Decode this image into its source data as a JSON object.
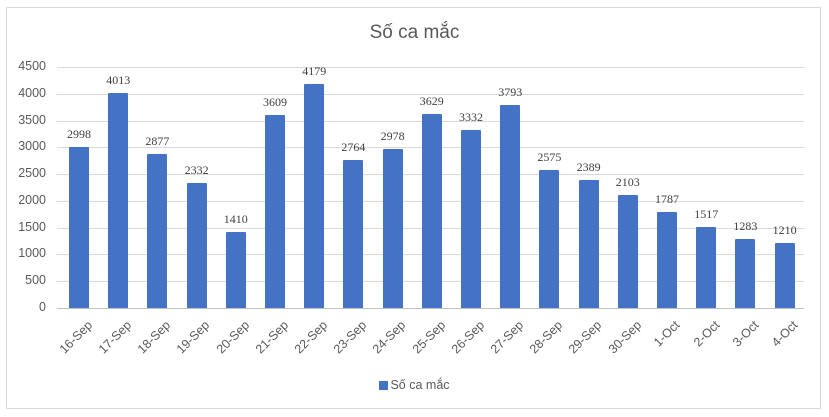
{
  "chart_data": {
    "type": "bar",
    "title": "Số ca mắc",
    "xlabel": "",
    "ylabel": "",
    "ylim": [
      0,
      4500
    ],
    "yticks": [
      0,
      500,
      1000,
      1500,
      2000,
      2500,
      3000,
      3500,
      4000,
      4500
    ],
    "grid": true,
    "legend_position": "bottom",
    "categories": [
      "16-Sep",
      "17-Sep",
      "18-Sep",
      "19-Sep",
      "20-Sep",
      "21-Sep",
      "22-Sep",
      "23-Sep",
      "24-Sep",
      "25-Sep",
      "26-Sep",
      "27-Sep",
      "28-Sep",
      "29-Sep",
      "30-Sep",
      "1-Oct",
      "2-Oct",
      "3-Oct",
      "4-Oct"
    ],
    "series": [
      {
        "name": "Số ca mắc",
        "color": "#4472c4",
        "values": [
          2998,
          4013,
          2877,
          2332,
          1410,
          3609,
          4179,
          2764,
          2978,
          3629,
          3332,
          3793,
          2575,
          2389,
          2103,
          1787,
          1517,
          1283,
          1210
        ]
      }
    ]
  },
  "legend": {
    "label": "Số ca mắc"
  }
}
